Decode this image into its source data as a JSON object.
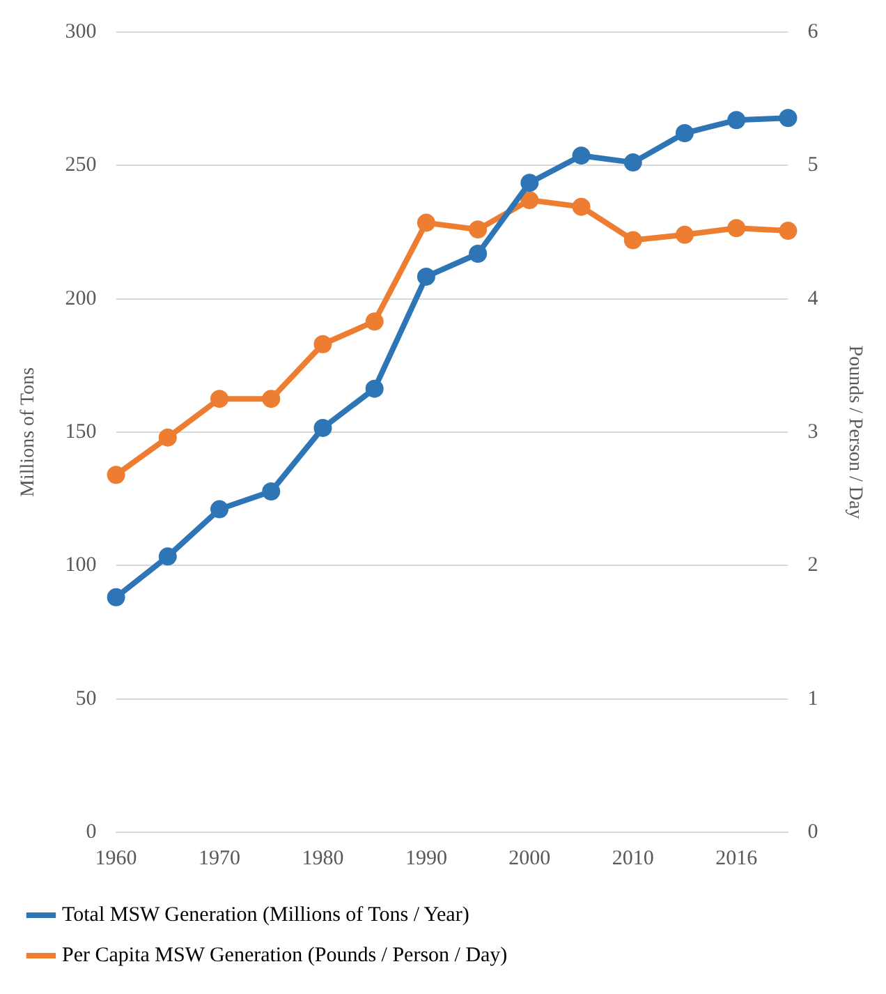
{
  "chart_data": {
    "type": "line",
    "ylabel": "Millions of Tons",
    "y2label": "Pounds / Person / Day",
    "categories": [
      "1960",
      null,
      "1970",
      null,
      "1980",
      null,
      "1990",
      null,
      "2000",
      null,
      "2010",
      null,
      "2016",
      null
    ],
    "series": [
      {
        "name": "Total MSW Generation (Millions of Tons / Year)",
        "color": "#2e75b6",
        "values": [
          88.1,
          103.4,
          121.1,
          127.8,
          151.6,
          166.3,
          208.3,
          216.9,
          243.5,
          253.7,
          251.1,
          262.1,
          267.0,
          267.8
        ]
      },
      {
        "name": "Per Capita MSW Generation (Pounds / Person / Day)",
        "color": "#ed7d31",
        "axis": "y2",
        "values": [
          2.68,
          2.96,
          3.25,
          3.25,
          3.66,
          3.83,
          4.57,
          4.52,
          4.74,
          4.69,
          4.44,
          4.48,
          4.53,
          4.51
        ]
      }
    ],
    "ylim": [
      0,
      300
    ],
    "yticks": [
      0,
      50,
      100,
      150,
      200,
      250,
      300
    ],
    "y2lim": [
      0,
      6
    ],
    "y2ticks": [
      0,
      1,
      2,
      3,
      4,
      5,
      6
    ],
    "grid": "y",
    "legend": "bottom",
    "marker": "circle",
    "line_style": "solid"
  }
}
